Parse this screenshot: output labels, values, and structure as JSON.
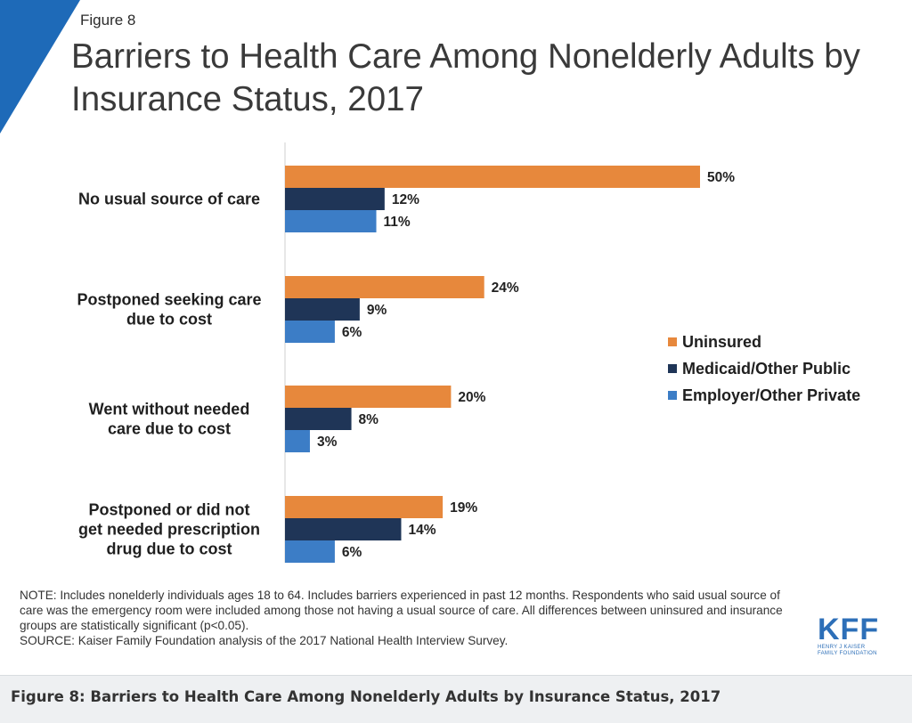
{
  "figure_label": "Figure 8",
  "title": "Barriers to Health Care Among Nonelderly Adults by Insurance Status, 2017",
  "colors": {
    "corner": "#1e6ab8",
    "uninsured": "#e7883c",
    "medicaid": "#1f3557",
    "employer": "#3c7dc6"
  },
  "chart_data": {
    "type": "bar",
    "orientation": "horizontal",
    "categories": [
      "No usual source of care",
      "Postponed seeking care due to cost",
      "Went without needed care due to cost",
      "Postponed or did not get needed prescription drug due to cost"
    ],
    "category_lines": [
      [
        "No usual source of care"
      ],
      [
        "Postponed seeking care",
        "due to cost"
      ],
      [
        "Went without needed",
        "care due to cost"
      ],
      [
        "Postponed or did not",
        "get needed prescription",
        "drug due to cost"
      ]
    ],
    "series": [
      {
        "name": "Uninsured",
        "values": [
          50,
          24,
          20,
          19
        ],
        "labels": [
          "50%",
          "24%",
          "20%",
          "19%"
        ]
      },
      {
        "name": "Medicaid/Other Public",
        "values": [
          12,
          9,
          8,
          14
        ],
        "labels": [
          "12%",
          "9%",
          "8%",
          "14%"
        ]
      },
      {
        "name": "Employer/Other Private",
        "values": [
          11,
          6,
          3,
          6
        ],
        "labels": [
          "11%",
          "6%",
          "3%",
          "6%"
        ]
      }
    ],
    "xlim": [
      0,
      50
    ],
    "legend_position": "right",
    "grid": false
  },
  "legend": [
    "Uninsured",
    "Medicaid/Other Public",
    "Employer/Other Private"
  ],
  "note": "NOTE: Includes nonelderly individuals ages 18 to 64. Includes barriers experienced in past 12 months. Respondents who said usual source of care was the emergency room were included among those not having a usual source of care. All differences between uninsured and insurance groups are statistically significant (p<0.05).",
  "source": "SOURCE: Kaiser Family Foundation analysis of the 2017 National Health Interview Survey.",
  "logo": {
    "text": "KFF",
    "sub1": "HENRY J KAISER",
    "sub2": "FAMILY FOUNDATION"
  },
  "caption": "Figure 8: Barriers to Health Care Among Nonelderly Adults by Insurance Status, 2017"
}
